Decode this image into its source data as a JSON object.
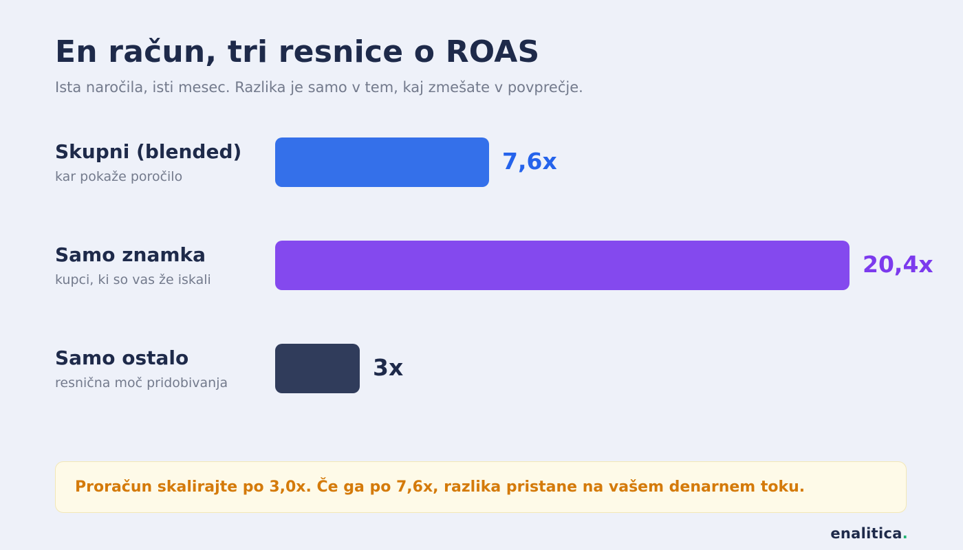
{
  "header": {
    "title": "En račun, tri resnice o ROAS",
    "subtitle": "Ista naročila, isti mesec. Razlika je samo v tem, kaj zmešate v povprečje."
  },
  "chart_data": {
    "type": "bar",
    "orientation": "horizontal",
    "title": "En račun, tri resnice o ROAS",
    "subtitle": "Ista naročila, isti mesec. Razlika je samo v tem, kaj zmešate v povprečje.",
    "categories": [
      "Skupni (blended)",
      "Samo znamka",
      "Samo ostalo"
    ],
    "category_subtitles": [
      "kar pokaže poročilo",
      "kupci, ki so vas že iskali",
      "resnična moč pridobivanja"
    ],
    "values": [
      7.6,
      20.4,
      3.0
    ],
    "value_labels": [
      "7,6x",
      "20,4x",
      "3x"
    ],
    "colors": [
      "#3470ea",
      "#8449ee",
      "#303c5b"
    ],
    "value_label_colors": [
      "#2563eb",
      "#7c3aed",
      "#1e2a4a"
    ],
    "xlim": [
      0,
      20.4
    ],
    "grid": false,
    "legend": "none"
  },
  "callout": {
    "text": "Proračun skalirajte po 3,0x. Če ga po 7,6x, razlika pristane na vašem denarnem toku."
  },
  "brand": {
    "name": "enalitica",
    "dot": "."
  },
  "colors": {
    "background": "#eef1f9",
    "text_dark": "#1e2a4a",
    "text_muted": "#737a8c",
    "callout_bg": "#fefae8",
    "callout_text": "#d47a0a",
    "brand_dot": "#22b573"
  }
}
